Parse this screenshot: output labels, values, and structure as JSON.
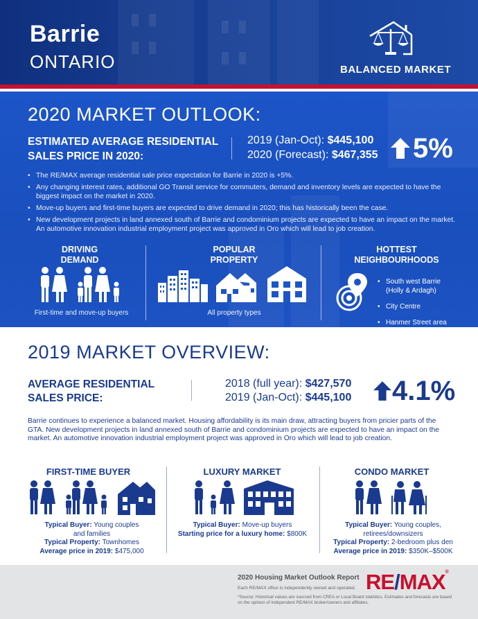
{
  "header": {
    "city": "Barrie",
    "province": "ONTARIO",
    "market_label": "BALANCED MARKET",
    "icon": "balance-scale-house-icon"
  },
  "outlook": {
    "title": "2020 MARKET OUTLOOK:",
    "est_label": "ESTIMATED AVERAGE RESIDENTIAL SALES PRICE IN 2020:",
    "line1_label": "2019 (Jan-Oct): ",
    "line1_value": "$445,100",
    "line2_label": "2020 (Forecast): ",
    "line2_value": "$467,355",
    "change": "5%",
    "change_direction": "up",
    "bullets": [
      "The RE/MAX average residential sale price expectation for Barrie in 2020 is +5%.",
      "Any changing interest rates, additional GO Transit service for commuters, demand and inventory levels are expected to have the biggest impact on the market in 2020.",
      "Move-up buyers and first-time buyers are expected to drive demand in 2020; this has historically been the case.",
      "New development projects in land annexed south of Barrie and condominium projects are expected to have an impact on the market. An automotive innovation industrial employment project was approved in Oro which will lead to job creation."
    ],
    "driving_demand": {
      "heading_1": "DRIVING",
      "heading_2": "DEMAND",
      "caption": "First-time and move-up buyers"
    },
    "popular_property": {
      "heading_1": "POPULAR",
      "heading_2": "PROPERTY",
      "caption": "All property types"
    },
    "hottest": {
      "heading": "HOTTEST NEIGHBOURHOODS",
      "items": [
        "South west Barrie (Holly & Ardagh)",
        "City Centre",
        "Hanmer Street area"
      ]
    }
  },
  "overview": {
    "title": "2019 MARKET OVERVIEW:",
    "avg_label_1": "AVERAGE RESIDENTIAL",
    "avg_label_2": "SALES PRICE:",
    "line1_label": "2018 (full year): ",
    "line1_value": "$427,570",
    "line2_label": "2019 (Jan-Oct): ",
    "line2_value": "$445,100",
    "change": "4.1%",
    "change_direction": "up",
    "paragraph": "Barrie continues to experience a balanced market. Housing affordability is its main draw, attracting buyers from pricier parts of the GTA. New development projects in land annexed south of Barrie and condominium projects are expected to have an impact on the market. An automotive innovation industrial employment project was approved in Oro which will lead to job creation.",
    "first_time": {
      "heading": "FIRST-TIME BUYER",
      "buyer_label": "Typical Buyer:",
      "buyer_value": " Young couples",
      "buyer_value_2": "and families",
      "property_label": "Typical Property:",
      "property_value": " Townhomes",
      "price_label": "Average price in 2019:",
      "price_value": " $475,000"
    },
    "luxury": {
      "heading": "LUXURY MARKET",
      "buyer_label": "Typical Buyer:",
      "buyer_value": " Move-up buyers",
      "price_label": "Starting price for a luxury home:",
      "price_value": " $800K"
    },
    "condo": {
      "heading": "CONDO MARKET",
      "buyer_label": "Typical Buyer:",
      "buyer_value": " Young couples,",
      "buyer_value_2": "retirees/downsizers",
      "property_label": "Typical Property:",
      "property_value": " 2-bedroom plus den",
      "price_label": "Average price in 2019:",
      "price_value": " $350K–$500K"
    }
  },
  "footer": {
    "title": "2020 Housing Market Outlook Report",
    "subtitle": "Each RE/MAX office is independently owned and operated.",
    "note": "*Source: Historical values are sourced from CREA or Local Board statistics. Estimates and forecasts are based on the opinion of independent RE/MAX broker/owners and affiliates.",
    "logo_re": "RE",
    "logo_slash": "/",
    "logo_max": "MAX",
    "logo_reg": "®"
  },
  "colors": {
    "navy": "#1a3a8f",
    "blue": "#1c55c8",
    "red": "#c8102e",
    "footer_gray": "#e3e4e6"
  }
}
